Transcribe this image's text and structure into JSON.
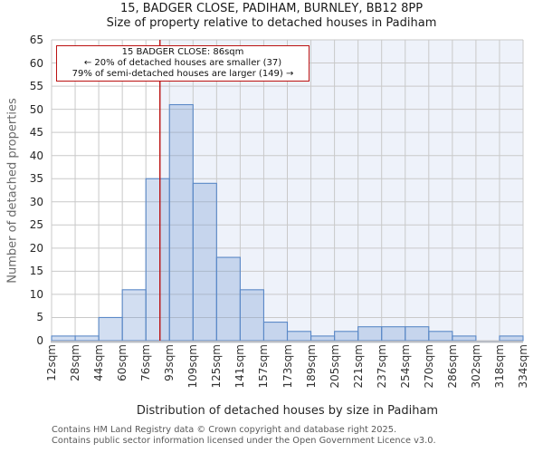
{
  "annotation": {
    "line1": "15 BADGER CLOSE: 86sqm",
    "line2": "← 20% of detached houses are smaller (37)",
    "line3": "79% of semi-detached houses are larger (149) →"
  },
  "footer": {
    "line1": "Contains HM Land Registry data © Crown copyright and database right 2025.",
    "line2": "Contains public sector information licensed under the Open Government Licence v3.0."
  },
  "chart_data": {
    "type": "bar",
    "title": "15, BADGER CLOSE, PADIHAM, BURNLEY, BB12 8PP",
    "subtitle": "Size of property relative to detached houses in Padiham",
    "xlabel": "Distribution of detached houses by size in Padiham",
    "ylabel": "Number of detached properties",
    "categories": [
      "12sqm",
      "28sqm",
      "44sqm",
      "60sqm",
      "76sqm",
      "93sqm",
      "109sqm",
      "125sqm",
      "141sqm",
      "157sqm",
      "173sqm",
      "189sqm",
      "205sqm",
      "221sqm",
      "237sqm",
      "254sqm",
      "270sqm",
      "286sqm",
      "302sqm",
      "318sqm",
      "334sqm"
    ],
    "values": [
      1,
      1,
      5,
      11,
      35,
      51,
      34,
      18,
      11,
      4,
      2,
      1,
      2,
      3,
      3,
      3,
      2,
      1,
      0,
      1
    ],
    "ylim": [
      0,
      65
    ],
    "y_ticks": [
      0,
      5,
      10,
      15,
      20,
      25,
      30,
      35,
      40,
      45,
      50,
      55,
      60,
      65
    ],
    "grid": true,
    "legend": "none",
    "marker": {
      "sqm": 86,
      "axis_min_sqm": 12,
      "axis_max_sqm": 334
    },
    "colors": {
      "bar_fill": "rgba(105,145,210,0.30)",
      "bar_edge": "#5b89c7",
      "marker_line": "#bb1111",
      "shaded_region": "#eef2fa",
      "grid": "#c9c9c9",
      "axis_line": "#b8bcc4",
      "annotation_border": "#bb1111"
    }
  }
}
